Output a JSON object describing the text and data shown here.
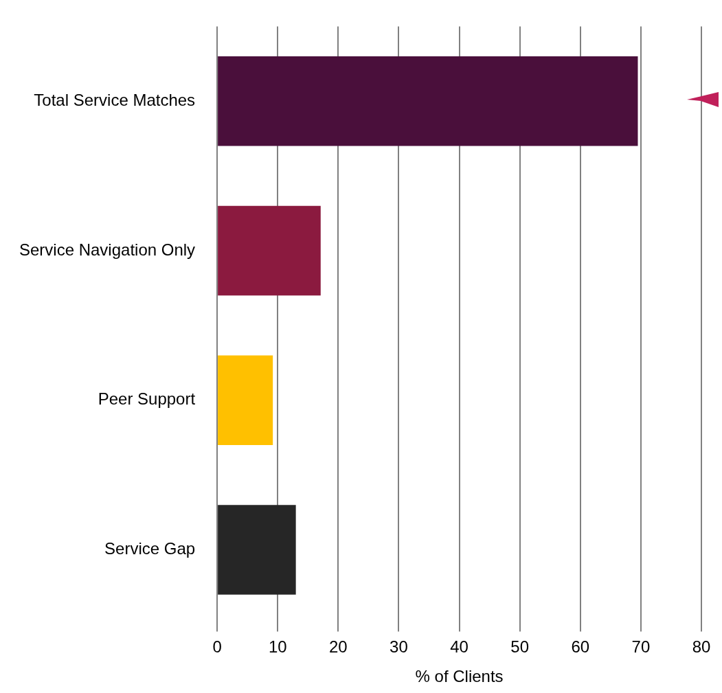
{
  "chart_data": {
    "type": "bar",
    "orientation": "horizontal",
    "xlabel": "% of Clients",
    "categories": [
      "Total Service Matches",
      "Service Navigation Only",
      "Peer Support",
      "Service Gap"
    ],
    "values": [
      69.5,
      17.1,
      9.2,
      13.0
    ],
    "colors": [
      "#4a0f3b",
      "#8b1a3f",
      "#ffc000",
      "#262626"
    ],
    "xlim": [
      0,
      80
    ],
    "xticks": [
      0,
      10,
      20,
      30,
      40,
      50,
      60,
      70,
      80
    ],
    "grid": "x"
  }
}
